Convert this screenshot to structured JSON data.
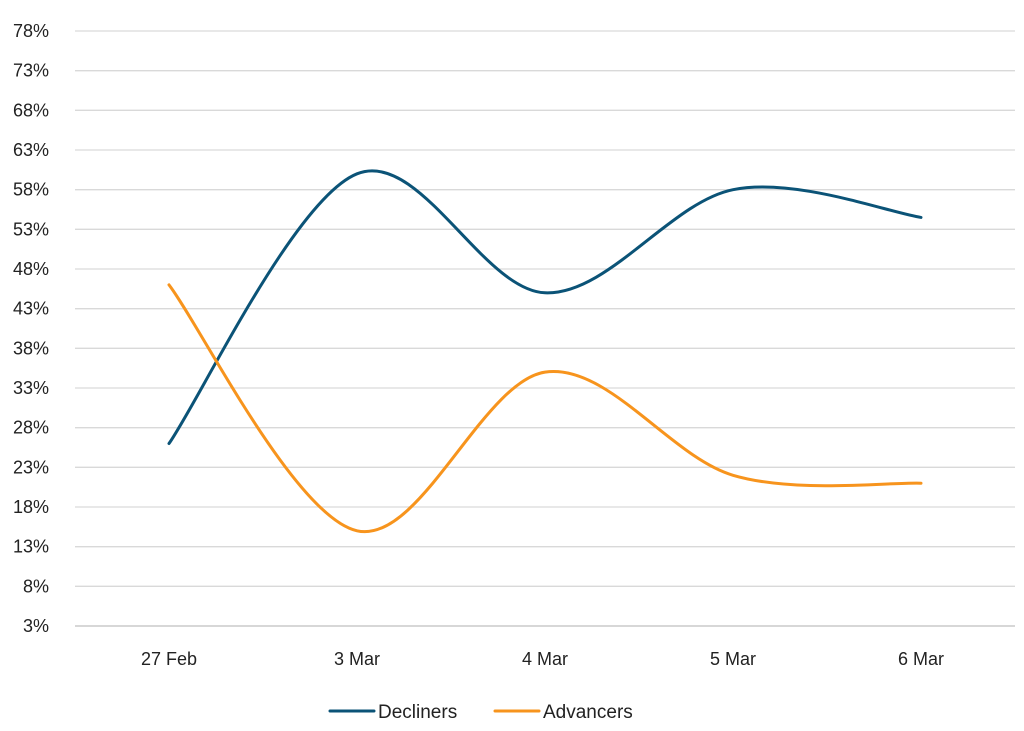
{
  "chart_data": {
    "type": "line",
    "title": "",
    "xlabel": "",
    "ylabel": "",
    "categories": [
      "27 Feb",
      "3 Mar",
      "4 Mar",
      "5 Mar",
      "6 Mar"
    ],
    "y_ticks": [
      "78%",
      "73%",
      "68%",
      "63%",
      "58%",
      "53%",
      "48%",
      "43%",
      "38%",
      "33%",
      "28%",
      "23%",
      "18%",
      "13%",
      "8%",
      "3%"
    ],
    "ylim": [
      3,
      78
    ],
    "y_unit": "%",
    "grid": true,
    "smooth": true,
    "legend_position": "bottom",
    "series": [
      {
        "name": "Decliners",
        "color": "#0b5377",
        "values": [
          26,
          60,
          45,
          58,
          54.5
        ]
      },
      {
        "name": "Advancers",
        "color": "#f7941d",
        "values": [
          46,
          15,
          35,
          22,
          21
        ]
      }
    ]
  }
}
